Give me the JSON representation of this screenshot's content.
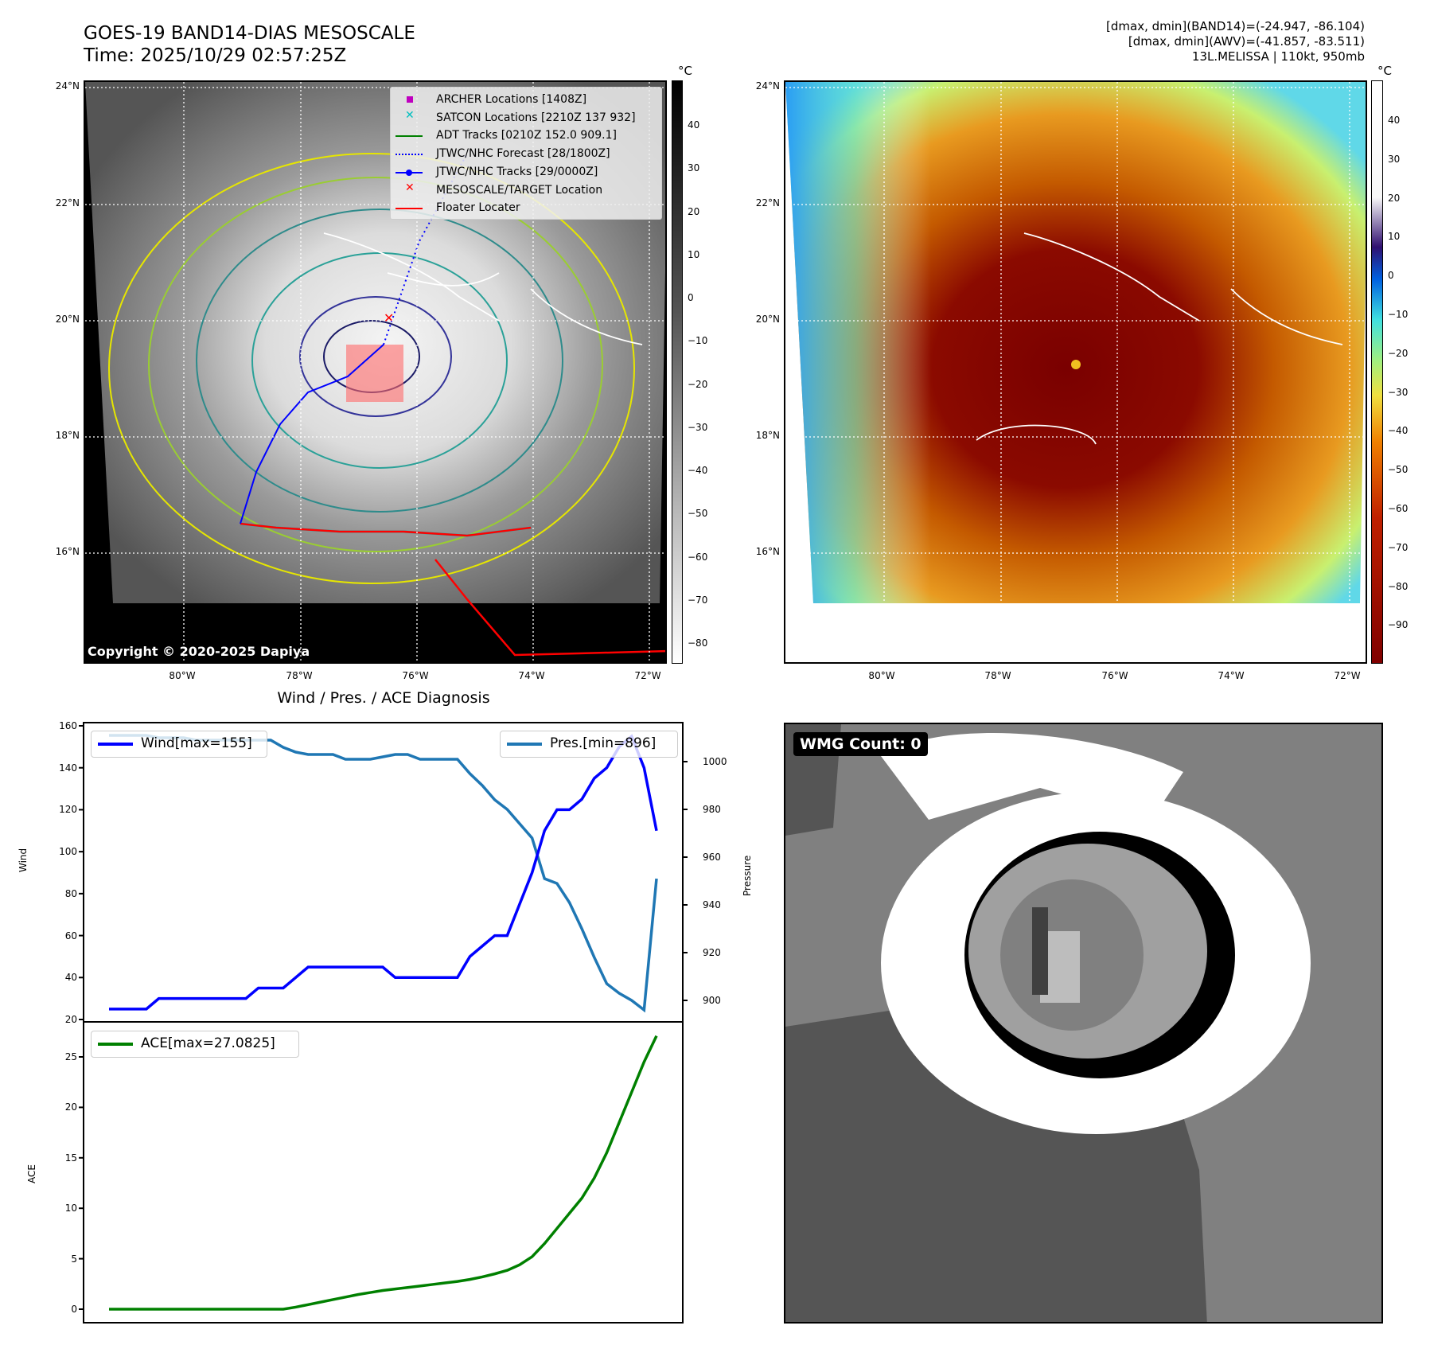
{
  "header": {
    "title_line1": "GOES-19 BAND14-DIAS MESOSCALE",
    "title_line2": "Time: 2025/10/29 02:57:25Z",
    "info_line1": "[dmax, dmin](BAND14)=(-24.947, -86.104)",
    "info_line2": "[dmax, dmin](AWV)=(-41.857, -83.511)",
    "info_line3": "13L.MELISSA | 110kt, 950mb"
  },
  "map_left": {
    "lat_labels": [
      "24°N",
      "22°N",
      "20°N",
      "18°N",
      "16°N"
    ],
    "lon_labels": [
      "80°W",
      "78°W",
      "76°W",
      "74°W",
      "72°W"
    ],
    "colorbar_unit": "°C",
    "colorbar_ticks": [
      "40",
      "30",
      "20",
      "10",
      "0",
      "−10",
      "−20",
      "−30",
      "−40",
      "−50",
      "−60",
      "−70",
      "−80"
    ],
    "copyright": "Copyright © 2020-2025 Dapiya",
    "legend": [
      {
        "label": "ARCHER Locations [1408Z]",
        "color": "#bf00bf",
        "marker": "square"
      },
      {
        "label": "SATCON Locations [2210Z 137 932]",
        "color": "#00bfbf",
        "marker": "x"
      },
      {
        "label": "ADT Tracks [0210Z 152.0 909.1]",
        "color": "#008000",
        "marker": "line"
      },
      {
        "label": "JTWC/NHC Forecast [28/1800Z]",
        "color": "#0000ff",
        "marker": "dotted"
      },
      {
        "label": "JTWC/NHC Tracks [29/0000Z]",
        "color": "#0000ff",
        "marker": "line-dot"
      },
      {
        "label": "MESOSCALE/TARGET Location",
        "color": "#ff0000",
        "marker": "x"
      },
      {
        "label": "Floater Locater",
        "color": "#ff0000",
        "marker": "line"
      }
    ]
  },
  "map_right": {
    "lat_labels": [
      "24°N",
      "22°N",
      "20°N",
      "18°N",
      "16°N"
    ],
    "lon_labels": [
      "80°W",
      "78°W",
      "76°W",
      "74°W",
      "72°W"
    ],
    "colorbar_unit": "°C",
    "colorbar_ticks": [
      "40",
      "30",
      "20",
      "10",
      "0",
      "−10",
      "−20",
      "−30",
      "−40",
      "−50",
      "−60",
      "−70",
      "−80",
      "−90"
    ]
  },
  "wmg": {
    "label": "WMG Count: 0"
  },
  "chart_data": [
    {
      "type": "line",
      "title": "Wind / Pres. / ACE Diagnosis",
      "ylabel": "Wind",
      "y2label": "Pressure",
      "ylim": [
        20,
        160
      ],
      "y2lim": [
        890,
        1015
      ],
      "yticks": [
        "160",
        "140",
        "120",
        "100",
        "80",
        "60",
        "40",
        "20"
      ],
      "y2ticks": [
        "1000",
        "980",
        "960",
        "940",
        "920",
        "900"
      ],
      "series": [
        {
          "name": "Wind[max=155]",
          "color": "#0000ff",
          "axis": "left",
          "values": [
            25,
            25,
            25,
            25,
            30,
            30,
            30,
            30,
            30,
            30,
            30,
            30,
            35,
            35,
            35,
            40,
            45,
            45,
            45,
            45,
            45,
            45,
            45,
            40,
            40,
            40,
            40,
            40,
            40,
            50,
            55,
            60,
            60,
            75,
            90,
            110,
            120,
            120,
            125,
            135,
            140,
            150,
            155,
            140,
            110
          ]
        },
        {
          "name": "Pres.[min=896]",
          "color": "#1f77b4",
          "axis": "right",
          "values": [
            1011,
            1011,
            1011,
            1011,
            1010,
            1010,
            1010,
            1009,
            1009,
            1009,
            1009,
            1009,
            1009,
            1009,
            1006,
            1004,
            1003,
            1003,
            1003,
            1001,
            1001,
            1001,
            1002,
            1003,
            1003,
            1001,
            1001,
            1001,
            1001,
            995,
            990,
            984,
            980,
            974,
            968,
            951,
            949,
            941,
            930,
            918,
            907,
            903,
            900,
            896,
            951
          ]
        }
      ]
    },
    {
      "type": "line",
      "ylabel": "ACE",
      "ylim": [
        -1,
        28
      ],
      "yticks": [
        "25",
        "20",
        "15",
        "10",
        "5",
        "0"
      ],
      "series": [
        {
          "name": "ACE[max=27.0825]",
          "color": "#008000",
          "values": [
            0,
            0,
            0,
            0,
            0,
            0,
            0,
            0,
            0,
            0,
            0,
            0,
            0,
            0,
            0,
            0.2,
            0.45,
            0.7,
            0.95,
            1.2,
            1.45,
            1.65,
            1.85,
            2.0,
            2.15,
            2.3,
            2.45,
            2.6,
            2.75,
            2.95,
            3.2,
            3.5,
            3.85,
            4.4,
            5.2,
            6.5,
            8.0,
            9.5,
            11.0,
            13.0,
            15.5,
            18.5,
            21.5,
            24.5,
            27.08
          ]
        }
      ]
    }
  ]
}
